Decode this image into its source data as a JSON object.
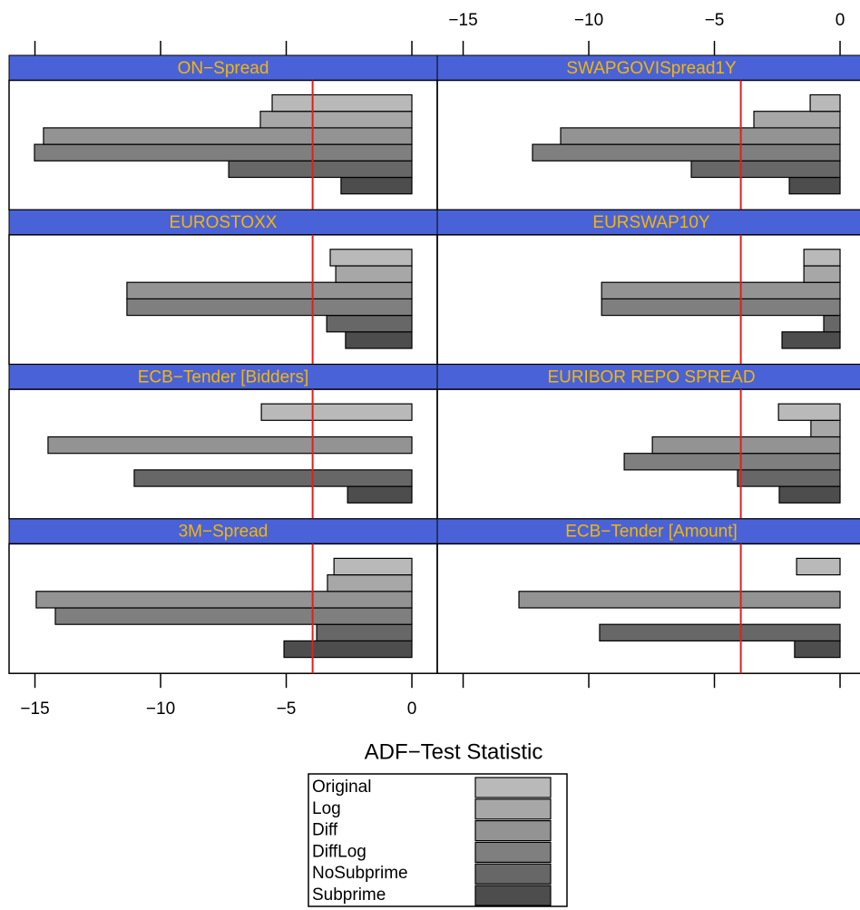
{
  "chart_data": {
    "type": "bar",
    "orientation": "horizontal",
    "xlabel": "ADF−Test Statistic",
    "xlim": [
      -16.03,
      1.01
    ],
    "xticks": [
      {
        "value": -15,
        "label": "−15"
      },
      {
        "value": -10,
        "label": "−10"
      },
      {
        "value": -5,
        "label": "−5"
      },
      0
    ],
    "reference_line": -3.95,
    "reference_color": "#e0201b",
    "strip_color": "#4a62d8",
    "strip_text_color": "#f2b705",
    "series": [
      {
        "name": "Subprime",
        "color": "#4d4d4d"
      },
      {
        "name": "NoSubprime",
        "color": "#676767"
      },
      {
        "name": "DiffLog",
        "color": "#7f7f7f"
      },
      {
        "name": "Diff",
        "color": "#939393"
      },
      {
        "name": "Log",
        "color": "#a7a7a7"
      },
      {
        "name": "Original",
        "color": "#b9b9b9"
      }
    ],
    "panels": [
      {
        "title": "ON−Spread",
        "values": [
          -2.82,
          -7.29,
          -15.02,
          -14.66,
          -6.03,
          -5.56
        ]
      },
      {
        "title": "SWAPGOVISpread1Y",
        "values": [
          -2.02,
          -5.92,
          -12.24,
          -11.12,
          -3.43,
          -1.19
        ]
      },
      {
        "title": "EUROSTOXX",
        "values": [
          -2.64,
          -3.39,
          -11.34,
          -11.34,
          -3.03,
          -3.25
        ]
      },
      {
        "title": "EURSWAP10Y",
        "values": [
          -2.31,
          -0.65,
          -9.49,
          -9.49,
          -1.44,
          -1.44
        ]
      },
      {
        "title": "ECB−Tender [Bidders]",
        "values": [
          -2.56,
          -11.05,
          null,
          -14.48,
          null,
          -5.99
        ]
      },
      {
        "title": "EURIBOR REPO SPREAD",
        "values": [
          -2.42,
          -4.08,
          -8.59,
          -7.47,
          -1.16,
          -2.45
        ]
      },
      {
        "title": "3M−Spread",
        "values": [
          -5.09,
          -3.79,
          -14.19,
          -14.95,
          -3.36,
          -3.1
        ]
      },
      {
        "title": "ECB−Tender [Amount]",
        "values": [
          -1.81,
          -9.57,
          null,
          -12.78,
          null,
          -1.73
        ]
      }
    ]
  }
}
